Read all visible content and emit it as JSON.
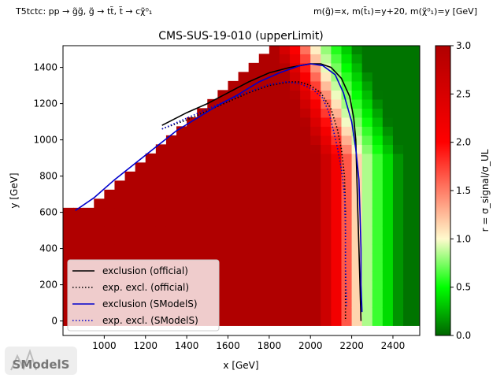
{
  "header": {
    "left": "T5tctc: pp → g̃g̃, g̃ → tt̃, t̃ → cχ̃⁰₁",
    "right": "m(g̃)=x, m(t̃₁)=y+20, m(χ̃⁰₁)=y [GeV]"
  },
  "chart_data": {
    "type": "heatmap",
    "title": "CMS-SUS-19-010 (upperLimit)",
    "xlabel": "x [GeV]",
    "ylabel": "y [GeV]",
    "xlim": [
      800,
      2530
    ],
    "ylim": [
      -80,
      1520
    ],
    "xticks": [
      1000,
      1200,
      1400,
      1600,
      1800,
      2000,
      2200,
      2400
    ],
    "yticks": [
      0,
      200,
      400,
      600,
      800,
      1000,
      1200,
      1400
    ],
    "colorbar": {
      "label": "r = σ_signal/σ_UL",
      "min": 0.0,
      "max": 3.0,
      "ticks": [
        0.0,
        0.5,
        1.0,
        1.5,
        2.0,
        2.5,
        3.0
      ],
      "colors": [
        "#006400",
        "#00ff00",
        "#fffacd",
        "#ff0000",
        "#b00000"
      ]
    },
    "grid_step_x": 50,
    "grid_step_y": 50,
    "series": [
      {
        "name": "exclusion (official)",
        "style": "solid",
        "color": "#000000",
        "points": [
          [
            1280,
            1080
          ],
          [
            1400,
            1150
          ],
          [
            1500,
            1200
          ],
          [
            1600,
            1260
          ],
          [
            1700,
            1320
          ],
          [
            1800,
            1370
          ],
          [
            1900,
            1400
          ],
          [
            2000,
            1420
          ],
          [
            2050,
            1420
          ],
          [
            2100,
            1400
          ],
          [
            2150,
            1340
          ],
          [
            2190,
            1240
          ],
          [
            2210,
            1120
          ],
          [
            2220,
            1000
          ],
          [
            2225,
            800
          ],
          [
            2230,
            600
          ],
          [
            2235,
            400
          ],
          [
            2240,
            200
          ],
          [
            2245,
            0
          ]
        ]
      },
      {
        "name": "exp. excl. (official)",
        "style": "dotted",
        "color": "#000000",
        "points": [
          [
            1280,
            1060
          ],
          [
            1400,
            1110
          ],
          [
            1500,
            1160
          ],
          [
            1600,
            1210
          ],
          [
            1700,
            1260
          ],
          [
            1800,
            1300
          ],
          [
            1900,
            1320
          ],
          [
            1950,
            1320
          ],
          [
            2000,
            1300
          ],
          [
            2050,
            1260
          ],
          [
            2100,
            1170
          ],
          [
            2130,
            1060
          ],
          [
            2150,
            950
          ],
          [
            2165,
            800
          ],
          [
            2170,
            600
          ],
          [
            2170,
            400
          ],
          [
            2170,
            200
          ],
          [
            2170,
            0
          ]
        ]
      },
      {
        "name": "exclusion (SModelS)",
        "style": "solid",
        "color": "#0000cc",
        "points": [
          [
            860,
            610
          ],
          [
            950,
            680
          ],
          [
            1050,
            780
          ],
          [
            1150,
            870
          ],
          [
            1250,
            960
          ],
          [
            1350,
            1050
          ],
          [
            1450,
            1120
          ],
          [
            1550,
            1190
          ],
          [
            1650,
            1250
          ],
          [
            1750,
            1320
          ],
          [
            1850,
            1370
          ],
          [
            1950,
            1410
          ],
          [
            2000,
            1420
          ],
          [
            2060,
            1410
          ],
          [
            2120,
            1360
          ],
          [
            2160,
            1260
          ],
          [
            2200,
            1100
          ],
          [
            2220,
            950
          ],
          [
            2235,
            780
          ],
          [
            2240,
            600
          ],
          [
            2245,
            400
          ],
          [
            2245,
            200
          ],
          [
            2250,
            50
          ]
        ]
      },
      {
        "name": "exp. excl. (SModelS)",
        "style": "dotted",
        "color": "#0000cc",
        "points": [
          [
            1280,
            1060
          ],
          [
            1400,
            1120
          ],
          [
            1500,
            1170
          ],
          [
            1600,
            1220
          ],
          [
            1700,
            1265
          ],
          [
            1800,
            1305
          ],
          [
            1880,
            1320
          ],
          [
            1950,
            1310
          ],
          [
            2010,
            1280
          ],
          [
            2060,
            1230
          ],
          [
            2090,
            1150
          ],
          [
            2110,
            1060
          ],
          [
            2130,
            960
          ],
          [
            2150,
            840
          ],
          [
            2165,
            700
          ],
          [
            2170,
            500
          ],
          [
            2170,
            300
          ],
          [
            2175,
            80
          ]
        ]
      }
    ],
    "legend_position": "lower-left"
  },
  "logo": {
    "text": "SModelS"
  }
}
